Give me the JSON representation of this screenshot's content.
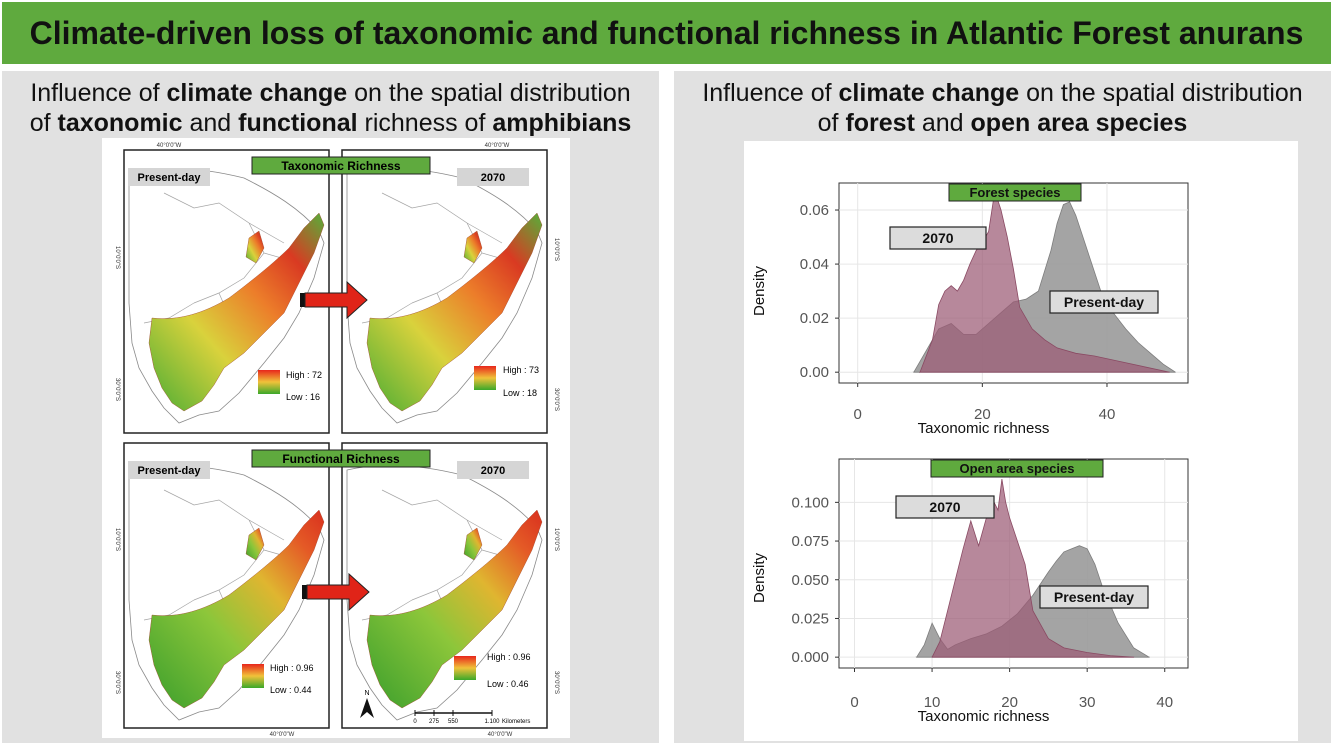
{
  "title": "Climate-driven loss of taxonomic and functional richness in Atlantic Forest anurans",
  "left_panel": {
    "heading": {
      "p1": "Influence of ",
      "b1": "climate change",
      "p2": " on the spatial distribution",
      "p3": "of ",
      "b2": "taxonomic",
      "p4": " and ",
      "b3": "functional",
      "p5": " richness of ",
      "b4": "amphibians"
    },
    "coord_top": "40°0'0\"W",
    "coord_bottom": "40°0'0\"W",
    "lat_10": "10°0'0\"S",
    "lat_30": "30°0'0\"S",
    "taxonomic": {
      "section_label": "Taxonomic Richness",
      "present_label": "Present-day",
      "future_label": "2070",
      "present_high": "High : 72",
      "present_low": "Low : 16",
      "future_high": "High : 73",
      "future_low": "Low : 18"
    },
    "functional": {
      "section_label": "Functional Richness",
      "present_label": "Present-day",
      "future_label": "2070",
      "present_high": "High : 0.96",
      "present_low": "Low : 0.44",
      "future_high": "High : 0.96",
      "future_low": "Low : 0.46"
    },
    "scale_bar": {
      "ticks": [
        "0",
        "275",
        "550",
        "1.100"
      ],
      "unit": "Kilometers",
      "north": "N"
    },
    "colors": {
      "high": "#e8261c",
      "mid": "#f0c23a",
      "low": "#3aa82a",
      "arrow": "#e02418"
    }
  },
  "right_panel": {
    "heading": {
      "p1": "Influence of ",
      "b1": "climate change",
      "p2": " on the spatial distribution",
      "p3": "of ",
      "b2": "forest",
      "p4": " and ",
      "b3": "open area species"
    }
  },
  "chart_data": [
    {
      "type": "area",
      "title": "Forest species",
      "xlabel": "Taxonomic richness",
      "ylabel": "Density",
      "xlim": [
        -3,
        53
      ],
      "ylim": [
        -0.004,
        0.07
      ],
      "xticks": [
        0,
        20,
        40
      ],
      "yticks": [
        0.0,
        0.02,
        0.04,
        0.06
      ],
      "ytick_labels": [
        "0.00",
        "0.02",
        "0.04",
        "0.06"
      ],
      "grid": true,
      "series": [
        {
          "name": "Present-day",
          "color": "#9a9a9a",
          "x": [
            9,
            11,
            13,
            15,
            17,
            19,
            21,
            23,
            25,
            27,
            29,
            31,
            32,
            33,
            34,
            35,
            37,
            39,
            41,
            43,
            45,
            47,
            49,
            51
          ],
          "y": [
            0,
            0.008,
            0.016,
            0.018,
            0.014,
            0.014,
            0.018,
            0.022,
            0.026,
            0.027,
            0.03,
            0.045,
            0.055,
            0.062,
            0.063,
            0.058,
            0.044,
            0.03,
            0.022,
            0.016,
            0.011,
            0.007,
            0.003,
            0
          ]
        },
        {
          "name": "2070",
          "color": "#9b5a74",
          "x": [
            10,
            12,
            13,
            14,
            15,
            16,
            17,
            18,
            19,
            20,
            21,
            22,
            23,
            24,
            25,
            26,
            28,
            30,
            32,
            35,
            38,
            42,
            46,
            50
          ],
          "y": [
            0,
            0.012,
            0.025,
            0.03,
            0.032,
            0.03,
            0.034,
            0.04,
            0.045,
            0.048,
            0.052,
            0.067,
            0.06,
            0.05,
            0.038,
            0.024,
            0.016,
            0.012,
            0.009,
            0.007,
            0.006,
            0.004,
            0.002,
            0
          ]
        }
      ]
    },
    {
      "type": "area",
      "title": "Open area species",
      "xlabel": "Taxonomic richness",
      "ylabel": "Density",
      "xlim": [
        -2,
        43
      ],
      "ylim": [
        -0.007,
        0.128
      ],
      "xticks": [
        0,
        10,
        20,
        30,
        40
      ],
      "yticks": [
        0.0,
        0.025,
        0.05,
        0.075,
        0.1
      ],
      "ytick_labels": [
        "0.000",
        "0.025",
        "0.050",
        "0.075",
        "0.100"
      ],
      "grid": true,
      "series": [
        {
          "name": "Present-day",
          "color": "#9a9a9a",
          "x": [
            8,
            9,
            10,
            11,
            12,
            13,
            15,
            17,
            19,
            21,
            23,
            25,
            26,
            27,
            28,
            29,
            30,
            31,
            32,
            34,
            36,
            38
          ],
          "y": [
            0,
            0.008,
            0.022,
            0.012,
            0.005,
            0.008,
            0.012,
            0.015,
            0.02,
            0.028,
            0.04,
            0.055,
            0.062,
            0.068,
            0.07,
            0.072,
            0.07,
            0.06,
            0.045,
            0.022,
            0.006,
            0
          ]
        },
        {
          "name": "2070",
          "color": "#9b5a74",
          "x": [
            10,
            11,
            12,
            13,
            14,
            15,
            15.5,
            16,
            17,
            18,
            18.5,
            19,
            19.5,
            20,
            21,
            22,
            23,
            25,
            27,
            30,
            33,
            36
          ],
          "y": [
            0,
            0.01,
            0.03,
            0.05,
            0.07,
            0.088,
            0.08,
            0.072,
            0.09,
            0.1,
            0.095,
            0.115,
            0.1,
            0.09,
            0.075,
            0.06,
            0.03,
            0.012,
            0.006,
            0.003,
            0.001,
            0
          ]
        }
      ]
    }
  ]
}
